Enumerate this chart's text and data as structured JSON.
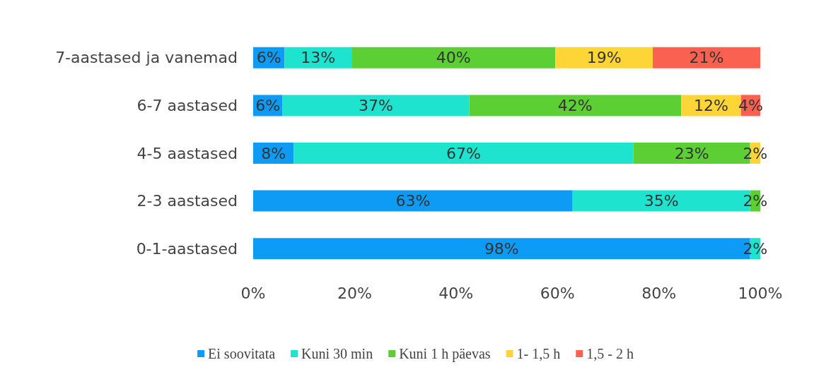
{
  "chart_data": {
    "type": "bar",
    "orientation": "horizontal",
    "stacked": true,
    "categories": [
      "7-aastased ja vanemad",
      "6-7 aastased",
      "4-5 aastased",
      "2-3 aastased",
      "0-1-aastased"
    ],
    "series": [
      {
        "name": "Ei soovitata",
        "color": "#0d9bf5",
        "values": [
          6.2,
          5.8,
          8,
          63,
          98
        ],
        "value_labels": [
          "6%",
          "6%",
          "8%",
          "63%",
          "98%"
        ]
      },
      {
        "name": "Kuni 30 min",
        "color": "#1de3cf",
        "values": [
          13.2,
          36.8,
          67,
          35,
          2
        ],
        "value_labels": [
          "13%",
          "37%",
          "67%",
          "35%",
          "2%"
        ]
      },
      {
        "name": "Kuni 1 h päevas",
        "color": "#5ccf34",
        "values": [
          40.2,
          41.8,
          23,
          2,
          null
        ],
        "value_labels": [
          "40%",
          "42%",
          "23%",
          "2%",
          null
        ]
      },
      {
        "name": "1- 1,5 h",
        "color": "#fdd536",
        "values": [
          19.2,
          11.8,
          2,
          null,
          null
        ],
        "value_labels": [
          "19%",
          "12%",
          "2%",
          null,
          null
        ]
      },
      {
        "name": "1,5 - 2 h",
        "color": "#fb6150",
        "values": [
          21.2,
          3.8,
          null,
          null,
          null
        ],
        "value_labels": [
          "21%",
          "4%",
          null,
          null,
          null
        ]
      }
    ],
    "xlim": [
      0,
      100
    ],
    "xticks": [
      {
        "value": 0,
        "label": "0%"
      },
      {
        "value": 20,
        "label": "20%"
      },
      {
        "value": 40,
        "label": "40%"
      },
      {
        "value": 60,
        "label": "60%"
      },
      {
        "value": 80,
        "label": "80%"
      },
      {
        "value": 100,
        "label": "100%"
      }
    ],
    "grid": false,
    "legend": "bottom"
  }
}
